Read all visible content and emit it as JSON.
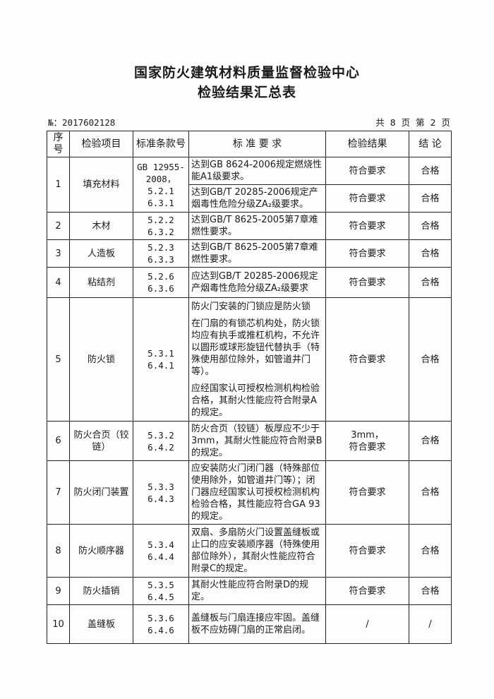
{
  "header": {
    "title": "国家防火建筑材料质量监督检验中心",
    "subtitle": "检验结果汇总表",
    "report_no": "№：2017602128",
    "page_info": "共 8 页 第 2 页"
  },
  "columns": [
    "序号",
    "检验项目",
    "标准条款号",
    "标 准 要 求",
    "检验结果",
    "结 论"
  ],
  "rows": [
    {
      "no": "1",
      "item": "填充材料",
      "clause": "GB 12955-\n2008，5.2.1\n6.3.1",
      "subs": [
        {
          "req": "达到GB 8624-2006规定燃烧性能A1级要求。",
          "result": "符合要求",
          "conclusion": "合格"
        },
        {
          "req": "达到GB/T 20285-2006规定产烟毒性危险分级ZA₂级要求。",
          "result": "符合要求",
          "conclusion": "合格"
        }
      ]
    },
    {
      "no": "2",
      "item": "木材",
      "clause": "5.2.2\n6.3.2",
      "req": [
        "达到GB/T 8625-2005第7章难燃性要求。"
      ],
      "result": "符合要求",
      "conclusion": "合格"
    },
    {
      "no": "3",
      "item": "人造板",
      "clause": "5.2.3\n6.3.3",
      "req": [
        "达到GB/T 8625-2005第7章难燃性要求。"
      ],
      "result": "符合要求",
      "conclusion": "合格"
    },
    {
      "no": "4",
      "item": "粘结剂",
      "clause": "5.2.6\n6.3.6",
      "req": [
        "应达到GB/T 20285-2006规定产烟毒性危险分级ZA₂级要求"
      ],
      "result": "符合要求",
      "conclusion": "合格"
    },
    {
      "no": "5",
      "item": "防火锁",
      "clause": "5.3.1\n6.4.1",
      "req": [
        "防火门安装的门锁应是防火锁",
        "在门扇的有锁芯机构处，防火锁均应有执手或推杠机构，不允许以圆形或球形旋钮代替执手（特殊使用部位除外，如管道井门等）。",
        "应经国家认可授权检测机构检验合格，其耐火性能应符合附录A的规定。"
      ],
      "result": "符合要求",
      "conclusion": "合格"
    },
    {
      "no": "6",
      "item": "防火合页（铰链）",
      "clause": "5.3.2\n6.4.2",
      "req": [
        "防火合页（铰链）板厚应不少于3mm，其耐火性能应符合附录B的规定。"
      ],
      "result": "3mm，\n符合要求",
      "conclusion": "合格"
    },
    {
      "no": "7",
      "item": "防火闭门装置",
      "clause": "5.3.3\n6.4.3",
      "req": [
        "应安装防火门闭门器（特殊部位使用除外，如管道井门等）；闭门器应经国家认可授权检测机构检验合格，其性能应符合GA 93的规定。"
      ],
      "result": "符合要求",
      "conclusion": "合格"
    },
    {
      "no": "8",
      "item": "防火顺序器",
      "clause": "5.3.4\n6.4.4",
      "req": [
        "双扇、多扇防火门设置盖缝板或止口的应安装顺序器（特殊使用部位除外），其耐火性能应符合附录C的规定。"
      ],
      "result": "符合要求",
      "conclusion": "合格"
    },
    {
      "no": "9",
      "item": "防火插销",
      "clause": "5.3.5\n6.4.5",
      "req": [
        "其耐火性能应符合附录D的规定。"
      ],
      "result": "符合要求",
      "conclusion": "合格"
    },
    {
      "no": "10",
      "item": "盖缝板",
      "clause": "5.3.6\n6.4.6",
      "req": [
        "盖缝板与门扇连接应牢固。盖缝板不应妨碍门扇的正常启闭。"
      ],
      "result": "/",
      "conclusion": "/"
    }
  ]
}
